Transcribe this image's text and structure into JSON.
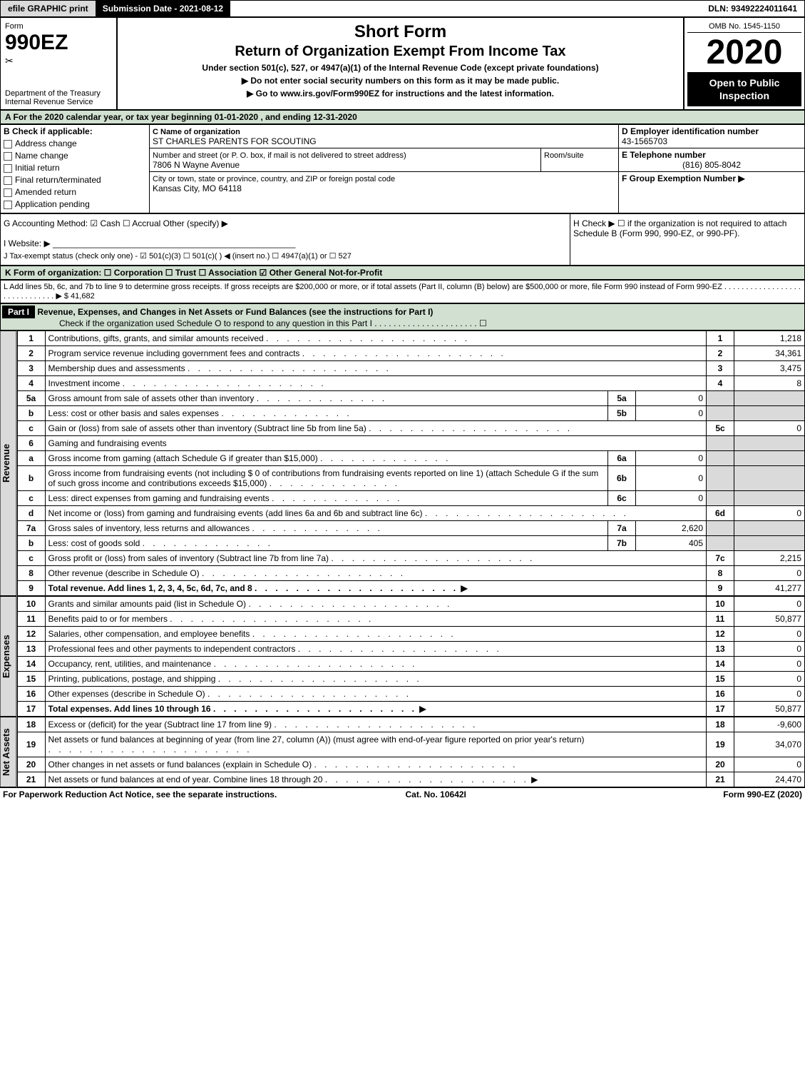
{
  "topbar": {
    "efile": "efile GRAPHIC print",
    "sub_label": "Submission Date - 2021-08-12",
    "dln_label": "DLN: 93492224011641"
  },
  "header": {
    "form_label": "Form",
    "form_number": "990EZ",
    "department": "Department of the Treasury",
    "irs": "Internal Revenue Service",
    "short_form": "Short Form",
    "title": "Return of Organization Exempt From Income Tax",
    "subtitle": "Under section 501(c), 527, or 4947(a)(1) of the Internal Revenue Code (except private foundations)",
    "note1": "▶ Do not enter social security numbers on this form as it may be made public.",
    "note2": "▶ Go to www.irs.gov/Form990EZ for instructions and the latest information.",
    "omb": "OMB No. 1545-1150",
    "year": "2020",
    "open": "Open to Public Inspection"
  },
  "period": "A For the 2020 calendar year, or tax year beginning 01-01-2020 , and ending 12-31-2020",
  "sectionB": {
    "header": "B Check if applicable:",
    "opts": [
      "Address change",
      "Name change",
      "Initial return",
      "Final return/terminated",
      "Amended return",
      "Application pending"
    ]
  },
  "sectionC": {
    "name_label": "C Name of organization",
    "name": "ST CHARLES PARENTS FOR SCOUTING",
    "street_label": "Number and street (or P. O. box, if mail is not delivered to street address)",
    "room_label": "Room/suite",
    "street": "7806 N Wayne Avenue",
    "city_label": "City or town, state or province, country, and ZIP or foreign postal code",
    "city": "Kansas City, MO  64118"
  },
  "sectionD": {
    "label": "D Employer identification number",
    "value": "43-1565703"
  },
  "sectionE": {
    "label": "E Telephone number",
    "value": "(816) 805-8042"
  },
  "sectionF": {
    "label": "F Group Exemption Number ▶"
  },
  "lineG": "G Accounting Method:  ☑ Cash  ☐ Accrual  Other (specify) ▶",
  "lineH": "H  Check ▶  ☐  if the organization is not required to attach Schedule B (Form 990, 990-EZ, or 990-PF).",
  "lineI": "I Website: ▶",
  "lineJ": "J Tax-exempt status (check only one) - ☑ 501(c)(3) ☐ 501(c)( ) ◀ (insert no.) ☐ 4947(a)(1) or ☐ 527",
  "lineK": "K Form of organization:  ☐ Corporation  ☐ Trust  ☐ Association  ☑ Other General Not-for-Profit",
  "lineL": "L Add lines 5b, 6c, and 7b to line 9 to determine gross receipts. If gross receipts are $200,000 or more, or if total assets (Part II, column (B) below) are $500,000 or more, file Form 990 instead of Form 990-EZ . . . . . . . . . . . . . . . . . . . . . . . . . . . . . . ▶ $ 41,682",
  "part1": {
    "label": "Part I",
    "title": "Revenue, Expenses, and Changes in Net Assets or Fund Balances (see the instructions for Part I)",
    "check": "Check if the organization used Schedule O to respond to any question in this Part I . . . . . . . . . . . . . . . . . . . . . . ☐"
  },
  "sections": {
    "revenue": "Revenue",
    "expenses": "Expenses",
    "netassets": "Net Assets"
  },
  "rows": [
    {
      "ln": "1",
      "desc": "Contributions, gifts, grants, and similar amounts received",
      "rn": "1",
      "val": "1,218"
    },
    {
      "ln": "2",
      "desc": "Program service revenue including government fees and contracts",
      "rn": "2",
      "val": "34,361"
    },
    {
      "ln": "3",
      "desc": "Membership dues and assessments",
      "rn": "3",
      "val": "3,475"
    },
    {
      "ln": "4",
      "desc": "Investment income",
      "rn": "4",
      "val": "8"
    },
    {
      "ln": "5a",
      "desc": "Gross amount from sale of assets other than inventory",
      "sub": "5a",
      "subval": "0"
    },
    {
      "ln": "b",
      "desc": "Less: cost or other basis and sales expenses",
      "sub": "5b",
      "subval": "0"
    },
    {
      "ln": "c",
      "desc": "Gain or (loss) from sale of assets other than inventory (Subtract line 5b from line 5a)",
      "rn": "5c",
      "val": "0"
    },
    {
      "ln": "6",
      "desc": "Gaming and fundraising events"
    },
    {
      "ln": "a",
      "desc": "Gross income from gaming (attach Schedule G if greater than $15,000)",
      "sub": "6a",
      "subval": "0"
    },
    {
      "ln": "b",
      "desc": "Gross income from fundraising events (not including $  0         of contributions from fundraising events reported on line 1) (attach Schedule G if the sum of such gross income and contributions exceeds $15,000)",
      "sub": "6b",
      "subval": "0"
    },
    {
      "ln": "c",
      "desc": "Less: direct expenses from gaming and fundraising events",
      "sub": "6c",
      "subval": "0"
    },
    {
      "ln": "d",
      "desc": "Net income or (loss) from gaming and fundraising events (add lines 6a and 6b and subtract line 6c)",
      "rn": "6d",
      "val": "0"
    },
    {
      "ln": "7a",
      "desc": "Gross sales of inventory, less returns and allowances",
      "sub": "7a",
      "subval": "2,620"
    },
    {
      "ln": "b",
      "desc": "Less: cost of goods sold",
      "sub": "7b",
      "subval": "405"
    },
    {
      "ln": "c",
      "desc": "Gross profit or (loss) from sales of inventory (Subtract line 7b from line 7a)",
      "rn": "7c",
      "val": "2,215"
    },
    {
      "ln": "8",
      "desc": "Other revenue (describe in Schedule O)",
      "rn": "8",
      "val": "0"
    },
    {
      "ln": "9",
      "desc": "Total revenue. Add lines 1, 2, 3, 4, 5c, 6d, 7c, and 8",
      "rn": "9",
      "val": "41,277",
      "bold": true,
      "arrow": true
    }
  ],
  "exp_rows": [
    {
      "ln": "10",
      "desc": "Grants and similar amounts paid (list in Schedule O)",
      "rn": "10",
      "val": "0"
    },
    {
      "ln": "11",
      "desc": "Benefits paid to or for members",
      "rn": "11",
      "val": "50,877"
    },
    {
      "ln": "12",
      "desc": "Salaries, other compensation, and employee benefits",
      "rn": "12",
      "val": "0"
    },
    {
      "ln": "13",
      "desc": "Professional fees and other payments to independent contractors",
      "rn": "13",
      "val": "0"
    },
    {
      "ln": "14",
      "desc": "Occupancy, rent, utilities, and maintenance",
      "rn": "14",
      "val": "0"
    },
    {
      "ln": "15",
      "desc": "Printing, publications, postage, and shipping",
      "rn": "15",
      "val": "0"
    },
    {
      "ln": "16",
      "desc": "Other expenses (describe in Schedule O)",
      "rn": "16",
      "val": "0"
    },
    {
      "ln": "17",
      "desc": "Total expenses. Add lines 10 through 16",
      "rn": "17",
      "val": "50,877",
      "bold": true,
      "arrow": true
    }
  ],
  "na_rows": [
    {
      "ln": "18",
      "desc": "Excess or (deficit) for the year (Subtract line 17 from line 9)",
      "rn": "18",
      "val": "-9,600"
    },
    {
      "ln": "19",
      "desc": "Net assets or fund balances at beginning of year (from line 27, column (A)) (must agree with end-of-year figure reported on prior year's return)",
      "rn": "19",
      "val": "34,070"
    },
    {
      "ln": "20",
      "desc": "Other changes in net assets or fund balances (explain in Schedule O)",
      "rn": "20",
      "val": "0"
    },
    {
      "ln": "21",
      "desc": "Net assets or fund balances at end of year. Combine lines 18 through 20",
      "rn": "21",
      "val": "24,470",
      "arrow": true
    }
  ],
  "footer": {
    "left": "For Paperwork Reduction Act Notice, see the separate instructions.",
    "mid": "Cat. No. 10642I",
    "right": "Form 990-EZ (2020)"
  }
}
